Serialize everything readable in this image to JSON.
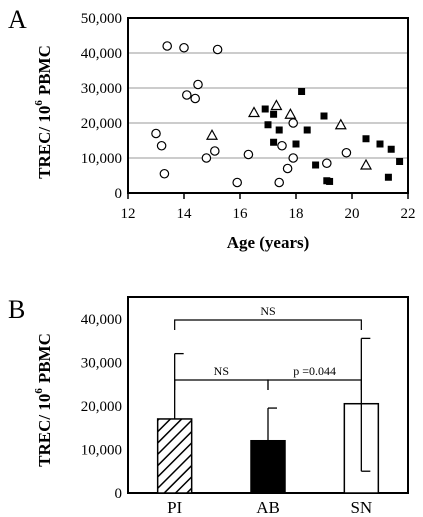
{
  "chart_data": [
    {
      "panel_label": "A",
      "type": "scatter",
      "xlabel": "Age (years)",
      "ylabel": {
        "base": "TREC/ 10",
        "superscript": "6",
        "tail": "PBMC"
      },
      "xlim": [
        12,
        22
      ],
      "ylim": [
        0,
        50000
      ],
      "xticks": [
        "12",
        "14",
        "16",
        "18",
        "20",
        "22"
      ],
      "yticks": [
        "0",
        "10,000",
        "20,000",
        "30,000",
        "40,000",
        "50,000"
      ],
      "ytick_values": [
        0,
        10000,
        20000,
        30000,
        40000,
        50000
      ],
      "xtick_values": [
        12,
        14,
        16,
        18,
        20,
        22
      ],
      "grid": "horizontal",
      "series": [
        {
          "marker": "open-circle",
          "points": [
            {
              "x": 13.4,
              "y": 42000
            },
            {
              "x": 14.0,
              "y": 41500
            },
            {
              "x": 15.2,
              "y": 41000
            },
            {
              "x": 14.5,
              "y": 31000
            },
            {
              "x": 14.1,
              "y": 28000
            },
            {
              "x": 14.4,
              "y": 27000
            },
            {
              "x": 13.0,
              "y": 17000
            },
            {
              "x": 13.2,
              "y": 13500
            },
            {
              "x": 13.3,
              "y": 5500
            },
            {
              "x": 14.8,
              "y": 10000
            },
            {
              "x": 15.1,
              "y": 12000
            },
            {
              "x": 15.9,
              "y": 3000
            },
            {
              "x": 16.3,
              "y": 11000
            },
            {
              "x": 17.4,
              "y": 3000
            },
            {
              "x": 17.7,
              "y": 7000
            },
            {
              "x": 17.5,
              "y": 13500
            },
            {
              "x": 17.9,
              "y": 20000
            },
            {
              "x": 17.9,
              "y": 10000
            },
            {
              "x": 19.1,
              "y": 8500
            },
            {
              "x": 19.8,
              "y": 11500
            }
          ]
        },
        {
          "marker": "open-triangle",
          "points": [
            {
              "x": 15.0,
              "y": 16500
            },
            {
              "x": 16.5,
              "y": 23000
            },
            {
              "x": 17.3,
              "y": 25000
            },
            {
              "x": 17.8,
              "y": 22500
            },
            {
              "x": 19.6,
              "y": 19500
            },
            {
              "x": 20.5,
              "y": 8000
            }
          ]
        },
        {
          "marker": "filled-square",
          "points": [
            {
              "x": 16.9,
              "y": 24000
            },
            {
              "x": 17.0,
              "y": 19500
            },
            {
              "x": 17.2,
              "y": 22500
            },
            {
              "x": 17.2,
              "y": 14500
            },
            {
              "x": 17.4,
              "y": 18000
            },
            {
              "x": 18.2,
              "y": 29000
            },
            {
              "x": 18.4,
              "y": 18000
            },
            {
              "x": 18.0,
              "y": 14000
            },
            {
              "x": 18.7,
              "y": 8000
            },
            {
              "x": 19.0,
              "y": 22000
            },
            {
              "x": 19.1,
              "y": 3500
            },
            {
              "x": 19.2,
              "y": 3300
            },
            {
              "x": 20.5,
              "y": 15500
            },
            {
              "x": 21.0,
              "y": 14000
            },
            {
              "x": 21.4,
              "y": 12500
            },
            {
              "x": 21.7,
              "y": 9000
            },
            {
              "x": 21.3,
              "y": 4500
            }
          ]
        }
      ]
    },
    {
      "panel_label": "B",
      "type": "bar",
      "categories": [
        "PI",
        "AB",
        "SN"
      ],
      "values": [
        17000,
        12000,
        20500
      ],
      "error_upper": [
        32000,
        19500,
        35500
      ],
      "error_lower": [
        null,
        null,
        5000
      ],
      "fills": [
        "hatched",
        "filled",
        "open"
      ],
      "ylabel": {
        "base": "TREC/ 10",
        "superscript": "6",
        "tail": "PBMC"
      },
      "ylim": [
        0,
        45000
      ],
      "yticks": [
        "0",
        "10,000",
        "20,000",
        "30,000",
        "40,000"
      ],
      "ytick_values": [
        0,
        10000,
        20000,
        30000,
        40000
      ],
      "comparisons": [
        {
          "from": 0,
          "to": 2,
          "label": "NS"
        },
        {
          "from": 0,
          "to": 1,
          "label": "NS"
        },
        {
          "from": 1,
          "to": 2,
          "label": "p =0.044"
        }
      ]
    }
  ]
}
